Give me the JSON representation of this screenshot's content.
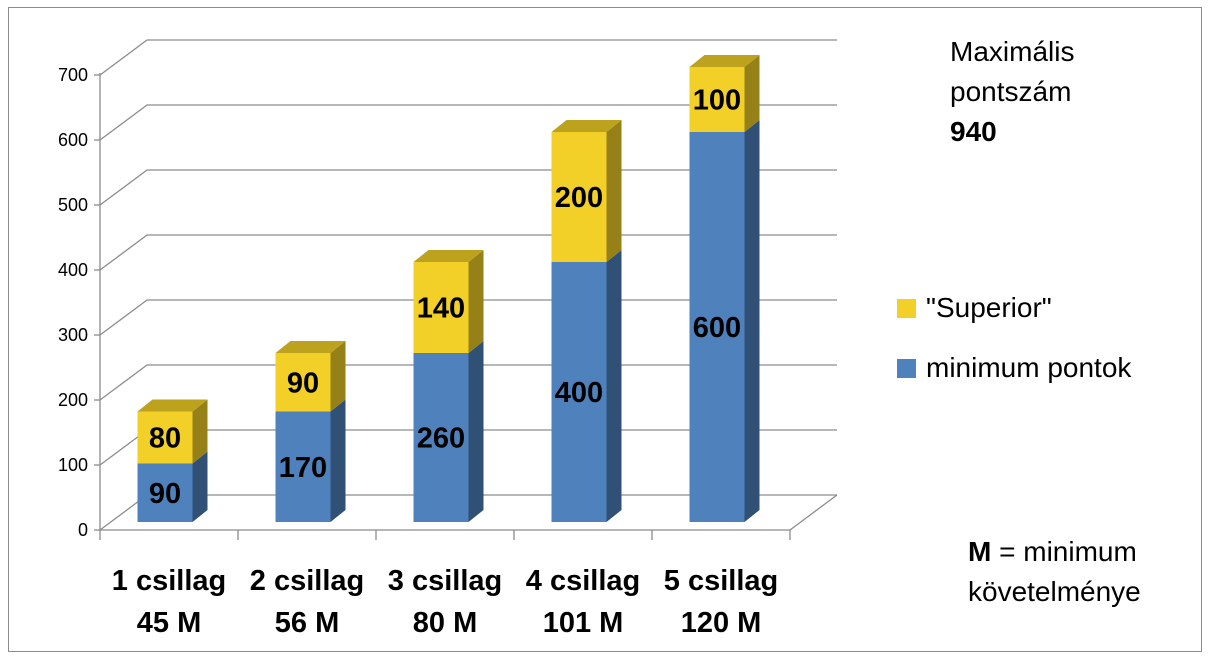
{
  "chart_data": {
    "type": "bar",
    "stacked": true,
    "three_d": true,
    "categories": [
      [
        "1 csillag",
        "45 M"
      ],
      [
        "2 csillag",
        "56 M"
      ],
      [
        "3 csillag",
        "80 M"
      ],
      [
        "4 csillag",
        "101 M"
      ],
      [
        "5 csillag",
        "120 M"
      ]
    ],
    "series": [
      {
        "name": "minimum pontok",
        "values": [
          90,
          170,
          260,
          400,
          600
        ],
        "color": "#4f81bd"
      },
      {
        "name": "\"Superior\"",
        "values": [
          80,
          90,
          140,
          200,
          100
        ],
        "color": "#f2d027"
      }
    ],
    "ylim": [
      0,
      700
    ],
    "yticks": [
      "0",
      "100",
      "200",
      "300",
      "400",
      "500",
      "600",
      "700"
    ],
    "grid": true,
    "legend_position": "right"
  },
  "side_notes": {
    "max_line1": "Maximális",
    "max_line2": "pontszám",
    "max_value": "940",
    "m_letter": "M",
    "m_rest": " = minimum",
    "m_line2": "követelménye"
  },
  "legend": {
    "superior": "\"Superior\"",
    "minimum": "minimum pontok"
  }
}
